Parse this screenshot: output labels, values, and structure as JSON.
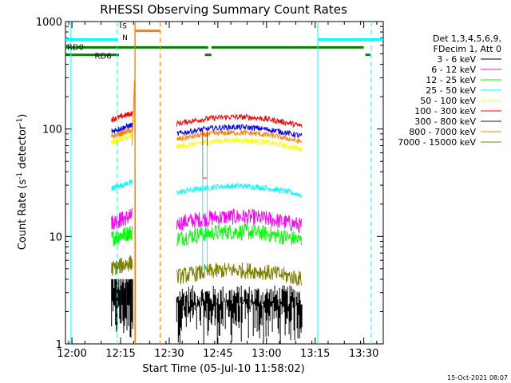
{
  "chart_data": {
    "type": "line",
    "title": "RHESSI Observing Summary Count Rates",
    "xlabel": "Start Time (05-Jul-10 11:58:02)",
    "ylabel_main": "Count Rate (s",
    "ylabel_sup1": "-1",
    "ylabel_mid": " detector",
    "ylabel_sup2": "-1",
    "ylabel_end": ")",
    "yscale": "log",
    "ylim": [
      1,
      1000
    ],
    "xlim_min": [
      -2,
      96
    ],
    "yticks": [
      {
        "value": 1,
        "label": "1"
      },
      {
        "value": 10,
        "label": "10"
      },
      {
        "value": 100,
        "label": "100"
      },
      {
        "value": 1000,
        "label": "1000"
      }
    ],
    "xticks": [
      {
        "value": 0,
        "label": "12:00"
      },
      {
        "value": 15,
        "label": "12:15"
      },
      {
        "value": 30,
        "label": "12:30"
      },
      {
        "value": 45,
        "label": "12:45"
      },
      {
        "value": 60,
        "label": "13:00"
      },
      {
        "value": 75,
        "label": "13:15"
      },
      {
        "value": 90,
        "label": "13:30"
      }
    ],
    "legend_header": [
      "Det 1,3,4,5,6,9,",
      "FDecim 1, Att 0"
    ],
    "series": [
      {
        "name": "3 - 6 keV",
        "color": "#000000",
        "segments": [
          [
            12.5,
            3.0
          ],
          [
            44.8,
            2.2
          ]
        ],
        "noisy": true
      },
      {
        "name": "6 - 12 keV",
        "color": "#ff00ff",
        "segments": [
          [
            12.5,
            13.5
          ],
          [
            44.8,
            13.2
          ]
        ]
      },
      {
        "name": "12 - 25 keV",
        "color": "#00ff00",
        "segments": [
          [
            12.5,
            9.6
          ],
          [
            44.8,
            9.6
          ]
        ]
      },
      {
        "name": "25 - 50 keV",
        "color": "#00ffff",
        "segments": [
          [
            12.5,
            28
          ],
          [
            44.8,
            25.5
          ]
        ]
      },
      {
        "name": "50 - 100 keV",
        "color": "#ffff00",
        "segments": [
          [
            12.5,
            75
          ],
          [
            44.8,
            68
          ]
        ]
      },
      {
        "name": "100 - 300 keV",
        "color": "#ff0000",
        "segments": [
          [
            12.5,
            122
          ],
          [
            44.8,
            112
          ]
        ]
      },
      {
        "name": "300 - 800 keV",
        "color": "#0000ff",
        "segments": [
          [
            12.5,
            95
          ],
          [
            44.8,
            90
          ]
        ]
      },
      {
        "name": "800 - 7000 keV",
        "color": "#ff8000",
        "segments": [
          [
            12.5,
            85
          ],
          [
            44.8,
            80
          ]
        ]
      },
      {
        "name": "7000 - 15000 keV",
        "color": "#808000",
        "segments": [
          [
            12.5,
            5.0
          ],
          [
            44.8,
            4.2
          ]
        ]
      }
    ],
    "flags": [
      {
        "name": "SAA",
        "label": "S",
        "color": "#ff8000"
      },
      {
        "name": "Night",
        "label": "N",
        "color": "#00ffff"
      },
      {
        "name": "RD0",
        "label": "RD0",
        "color": "#008000"
      },
      {
        "name": "RD6",
        "label": "RD6",
        "color": "#008000"
      }
    ],
    "timestamp": "15-Oct-2021 08:07"
  }
}
